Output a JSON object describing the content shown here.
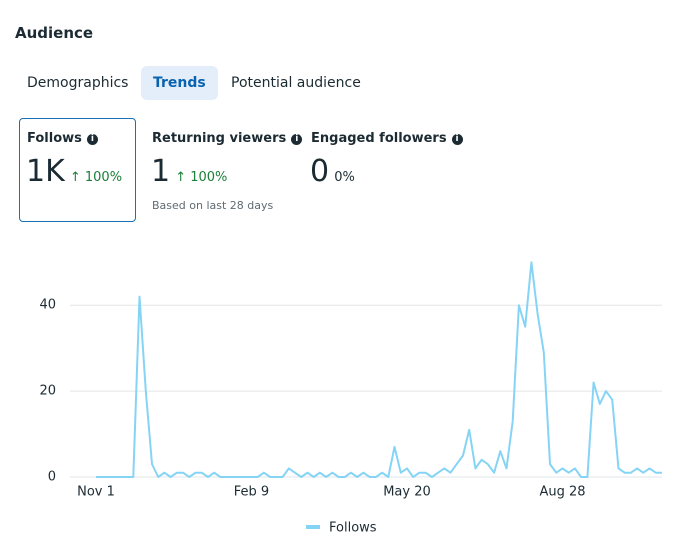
{
  "header": {
    "title": "Audience"
  },
  "tabs": [
    "Demographics",
    "Trends",
    "Potential audience"
  ],
  "active_tab": 1,
  "metrics": [
    {
      "label": "Follows",
      "value": "1K",
      "change": "100%"
    },
    {
      "label": "Returning viewers",
      "value": "1",
      "change": "100%",
      "note": "Based on last 28 days"
    },
    {
      "label": "Engaged followers",
      "value": "0",
      "change": "0%"
    }
  ],
  "chart_data": {
    "type": "line",
    "categories": [
      "Nov 1",
      null,
      null,
      null,
      null,
      null,
      null,
      null,
      null,
      null,
      null,
      null,
      null,
      null,
      null,
      null,
      null,
      null,
      null,
      null,
      null,
      null,
      null,
      null,
      null,
      "Feb 9",
      null,
      null,
      null,
      null,
      null,
      null,
      null,
      null,
      null,
      null,
      null,
      null,
      null,
      null,
      null,
      null,
      null,
      null,
      null,
      null,
      null,
      null,
      null,
      null,
      "May 20",
      null,
      null,
      null,
      null,
      null,
      null,
      null,
      null,
      null,
      null,
      null,
      null,
      null,
      null,
      null,
      null,
      null,
      null,
      null,
      null,
      null,
      null,
      null,
      null,
      "Aug 28",
      null,
      null,
      null,
      null,
      null,
      null,
      null,
      null,
      null,
      null,
      null,
      null,
      null,
      null,
      null,
      null
    ],
    "series": [
      {
        "name": "Follows",
        "color": "#86d4f5",
        "values": [
          0,
          0,
          0,
          0,
          0,
          0,
          0,
          42,
          20,
          3,
          0,
          1,
          0,
          1,
          1,
          0,
          1,
          1,
          0,
          1,
          0,
          0,
          0,
          0,
          0,
          0,
          0,
          1,
          0,
          0,
          0,
          2,
          1,
          0,
          1,
          0,
          1,
          0,
          1,
          0,
          0,
          1,
          0,
          1,
          0,
          0,
          1,
          0,
          7,
          1,
          2,
          0,
          1,
          1,
          0,
          1,
          2,
          1,
          3,
          5,
          11,
          2,
          4,
          3,
          1,
          6,
          2,
          13,
          40,
          35,
          50,
          38,
          29,
          3,
          1,
          2,
          1,
          2,
          0,
          0,
          22,
          17,
          20,
          18,
          2,
          1,
          1,
          2,
          1,
          2,
          1,
          1
        ]
      }
    ],
    "ylim": [
      0,
      51
    ],
    "yticks": [
      0,
      20,
      40
    ],
    "grid": true,
    "legend": "bottom"
  }
}
